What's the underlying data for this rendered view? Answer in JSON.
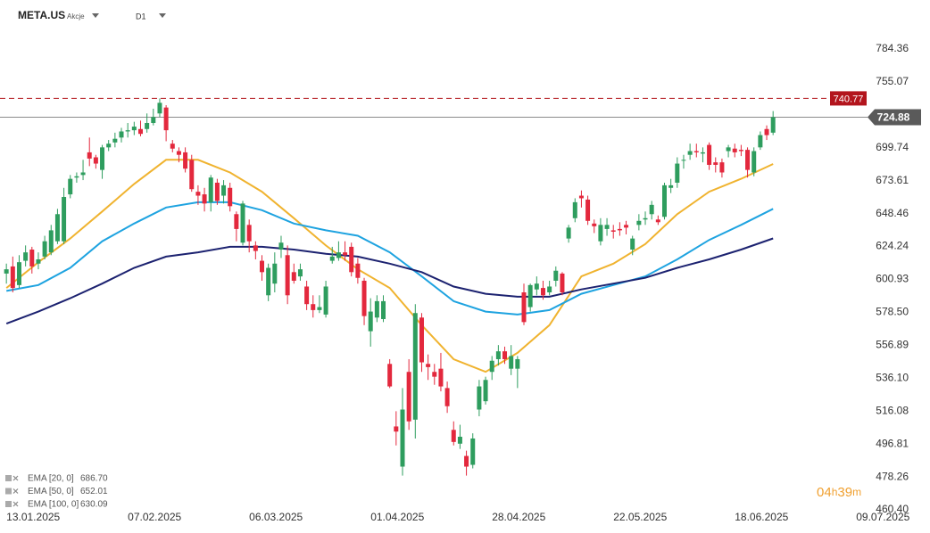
{
  "chart_data": {
    "type": "candlestick",
    "title": "META.US",
    "asset_class": "Akcje",
    "interval": "D1",
    "countdown": [
      "04",
      "h",
      "39",
      "m"
    ],
    "log_scale": true,
    "grid": false,
    "up_color": "#2e9d5e",
    "down_color": "#e3283d",
    "ylim": [
      459,
      830
    ],
    "yticks": [
      784.36,
      755.07,
      699.74,
      673.61,
      648.46,
      624.24,
      600.93,
      {
        "value": 578.5,
        "label": "578.50"
      },
      556.89,
      {
        "value": 536.1,
        "label": "536.10"
      },
      516.08,
      496.81,
      478.26,
      {
        "value": 460.4,
        "label": "460.40"
      }
    ],
    "xlim": [
      -1,
      135.2
    ],
    "xticks": [
      {
        "value": 0,
        "label": "13.01.2025"
      },
      {
        "value": 19,
        "label": "07.02.2025"
      },
      {
        "value": 38,
        "label": "06.03.2025"
      },
      {
        "value": 57,
        "label": "01.04.2025"
      },
      {
        "value": 76,
        "label": "28.04.2025"
      },
      {
        "value": 95,
        "label": "22.05.2025"
      },
      {
        "value": 114,
        "label": "18.06.2025"
      },
      {
        "value": 133,
        "label": "09.07.2025"
      }
    ],
    "price_lines": [
      {
        "value": 740.77,
        "color": "#b3151d",
        "style": "dashed"
      },
      {
        "value": 724.88,
        "color": "#8a8a8a",
        "style": "solid",
        "label_color": "#5a5a5a"
      }
    ],
    "open": [
      605,
      610,
      597,
      614,
      622,
      612,
      617,
      620,
      628,
      628,
      663,
      676,
      678,
      696,
      692,
      682,
      700,
      704,
      708,
      713,
      714,
      715,
      715,
      720,
      728,
      733,
      703,
      697,
      696,
      690,
      665,
      663,
      657,
      672,
      662,
      668,
      648,
      627,
      640,
      625,
      614,
      590,
      598,
      622,
      618,
      606,
      603,
      596,
      584,
      580,
      577,
      614,
      616,
      620,
      624,
      612,
      600,
      566,
      575,
      574,
      545,
      507,
      484,
      540,
      511,
      575,
      545,
      540,
      542,
      530,
      505,
      497,
      490,
      485,
      517,
      522,
      540,
      548,
      553,
      542,
      542,
      592,
      582,
      594,
      595,
      592,
      600,
      605,
      630,
      645,
      662,
      659,
      641,
      628,
      637,
      636,
      637,
      640,
      622,
      640,
      644,
      648,
      644,
      646,
      668,
      672,
      690,
      694,
      697,
      695,
      702,
      688,
      688,
      697,
      699,
      698,
      698,
      680,
      700,
      715,
      712
    ],
    "high": [
      612,
      617,
      618,
      625,
      624,
      620,
      632,
      640,
      652,
      668,
      678,
      680,
      690,
      708,
      694,
      702,
      706,
      712,
      716,
      720,
      721,
      722,
      728,
      732,
      740.77,
      735,
      706,
      700,
      700,
      694,
      670,
      668,
      678,
      675,
      674,
      672,
      650,
      658,
      644,
      628,
      618,
      612,
      620,
      632,
      625,
      612,
      612,
      600,
      590,
      590,
      600,
      624,
      628,
      628,
      627,
      616,
      602,
      588,
      590,
      590,
      548,
      516,
      530,
      548,
      584,
      578,
      551,
      545,
      552,
      534,
      510,
      508,
      493,
      503,
      535,
      537,
      550,
      557,
      556,
      557,
      550,
      598,
      598,
      603,
      600,
      600,
      610,
      606,
      640,
      660,
      666,
      662,
      644,
      645,
      645,
      640,
      642,
      643,
      632,
      648,
      650,
      658,
      647,
      672,
      675,
      692,
      694,
      703,
      703,
      700,
      704,
      692,
      691,
      702,
      703,
      702,
      700,
      700,
      713,
      718,
      730
    ],
    "low": [
      598,
      592,
      595,
      610,
      605,
      608,
      615,
      618,
      626,
      626,
      660,
      672,
      674,
      685,
      683,
      675,
      697,
      700,
      704,
      708,
      710,
      709,
      712,
      718,
      725,
      705,
      696,
      688,
      680,
      665,
      655,
      650,
      650,
      655,
      656,
      650,
      628,
      625,
      620,
      615,
      600,
      586,
      592,
      616,
      584,
      598,
      600,
      580,
      575,
      578,
      575,
      612,
      614,
      614,
      603,
      598,
      570,
      556,
      572,
      572,
      530,
      496,
      479,
      505,
      500,
      540,
      535,
      532,
      528,
      515,
      496,
      494,
      479,
      483,
      513,
      520,
      535,
      544,
      545,
      538,
      530,
      570,
      579,
      590,
      587,
      590,
      596,
      590,
      627,
      642,
      653,
      640,
      634,
      625,
      632,
      630,
      632,
      633,
      618,
      636,
      640,
      644,
      640,
      644,
      664,
      668,
      683,
      690,
      692,
      688,
      682,
      680,
      676,
      692,
      692,
      693,
      676,
      677,
      698,
      706,
      710
    ],
    "close": [
      608,
      595,
      613,
      620,
      610,
      615,
      628,
      636,
      648,
      661,
      675,
      677,
      680,
      691,
      687,
      700,
      703,
      707,
      713,
      714,
      717,
      711,
      720,
      725,
      737,
      714,
      699,
      694,
      683,
      667,
      662,
      656,
      676,
      658,
      670,
      654,
      637,
      656,
      628,
      621,
      606,
      609,
      612,
      627,
      590,
      600,
      608,
      584,
      580,
      582,
      596,
      617,
      620,
      618,
      606,
      602,
      576,
      579,
      586,
      586,
      531,
      504,
      517,
      510,
      578,
      546,
      543,
      537,
      531,
      519,
      498,
      501,
      484,
      500,
      531,
      535,
      547,
      553,
      548,
      550,
      548,
      572,
      597,
      598,
      590,
      596,
      607,
      592,
      638,
      657,
      660,
      643,
      639,
      640,
      640,
      635,
      636,
      638,
      630,
      643,
      645,
      655,
      642,
      670,
      670,
      687,
      690,
      697,
      696,
      696,
      686,
      686,
      680,
      700,
      696,
      697,
      682,
      697,
      710,
      710,
      724.88
    ],
    "series": [
      {
        "name": "EMA [20, 0]",
        "last_label": "686.70",
        "color": "#f0b32f",
        "x": [
          0,
          5,
          10,
          15,
          20,
          25,
          30,
          35,
          40,
          45,
          50,
          55,
          60,
          65,
          70,
          75,
          80,
          85,
          90,
          95,
          100,
          105,
          110,
          115,
          120
        ],
        "values": [
          595,
          613,
          630,
          650,
          671,
          690,
          690,
          680,
          665,
          645,
          625,
          608,
          595,
          570,
          548,
          540,
          552,
          570,
          603,
          612,
          626,
          648,
          665,
          675,
          686.7
        ]
      },
      {
        "name": "EMA [50, 0]",
        "last_label": "652.01",
        "color": "#1ea3e0",
        "x": [
          0,
          5,
          10,
          15,
          20,
          25,
          30,
          35,
          40,
          45,
          50,
          55,
          60,
          65,
          70,
          75,
          80,
          85,
          90,
          95,
          100,
          105,
          110,
          115,
          120
        ],
        "values": [
          593,
          597,
          609,
          628,
          641,
          653,
          657,
          657,
          651,
          641,
          636,
          632,
          620,
          603,
          586,
          579,
          577,
          580,
          591,
          597,
          603,
          615,
          629,
          640,
          652.01
        ]
      },
      {
        "name": "EMA [100, 0]",
        "last_label": "630.09",
        "color": "#1c2270",
        "x": [
          0,
          5,
          10,
          15,
          20,
          25,
          30,
          35,
          40,
          45,
          50,
          55,
          60,
          65,
          70,
          75,
          80,
          85,
          90,
          95,
          100,
          105,
          110,
          115,
          120
        ],
        "values": [
          571,
          579,
          588,
          598,
          609,
          617,
          620,
          624,
          624,
          622,
          619,
          617,
          612,
          606,
          596,
          591,
          589,
          589,
          594,
          598,
          602,
          609,
          615,
          622,
          630.09
        ]
      }
    ]
  }
}
